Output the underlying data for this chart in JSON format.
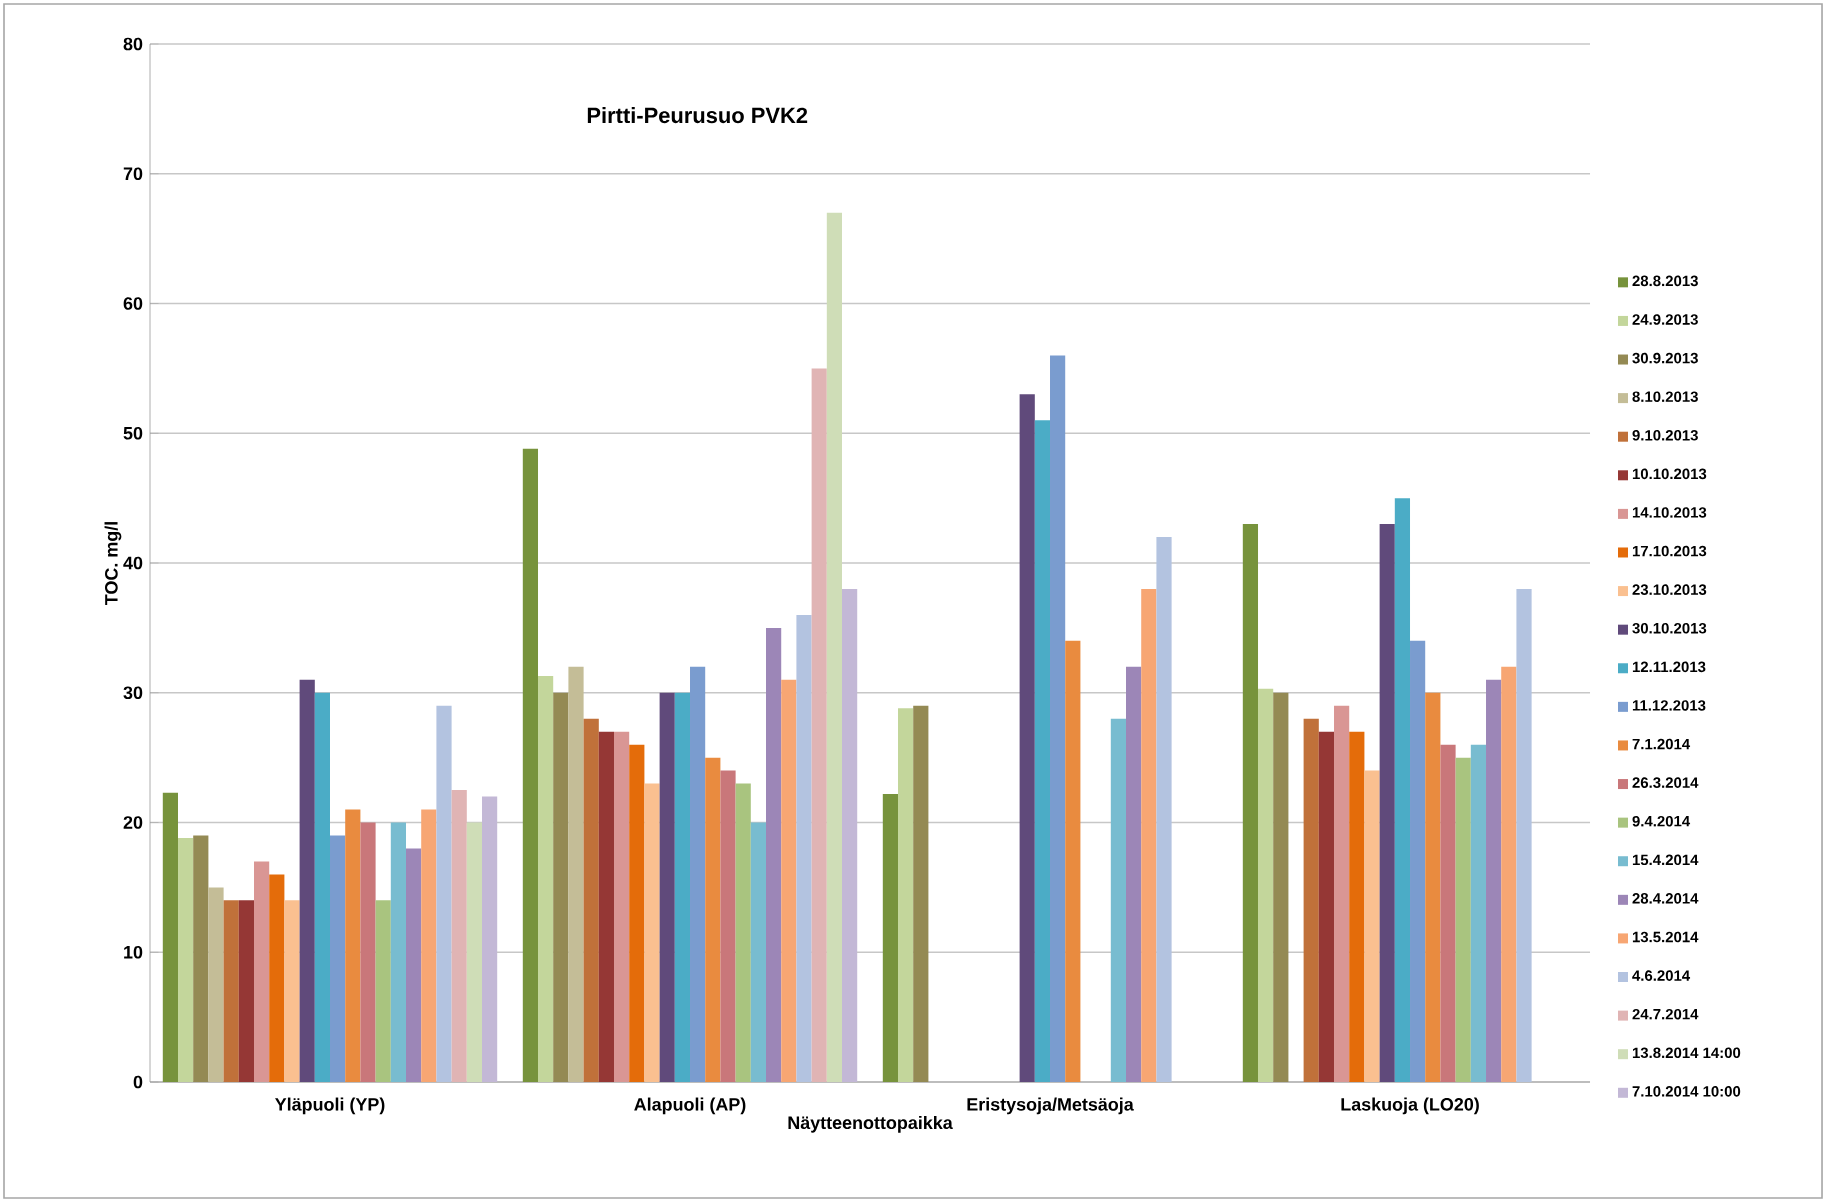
{
  "chart_data": {
    "type": "bar",
    "title": "Pirtti-Peurusuo PVK2",
    "xlabel": "Näytteenottopaikka",
    "ylabel": "TOC. mg/l",
    "categories": [
      "Yläpuoli (YP)",
      "Alapuoli (AP)",
      "Eristysoja/Metsäoja",
      "Laskuoja (LO20)"
    ],
    "ylim": [
      0,
      80
    ],
    "yticks": [
      0,
      10,
      20,
      30,
      40,
      50,
      60,
      70,
      80
    ],
    "grid": "y",
    "legend": "right",
    "series": [
      {
        "name": "28.8.2013",
        "color": "#77933c",
        "values": [
          22.3,
          48.8,
          22.2,
          43
        ]
      },
      {
        "name": "24.9.2013",
        "color": "#c3d69b",
        "values": [
          18.8,
          31.3,
          28.8,
          30.3
        ]
      },
      {
        "name": "30.9.2013",
        "color": "#948a54",
        "values": [
          19,
          30,
          29,
          30
        ]
      },
      {
        "name": "8.10.2013",
        "color": "#c4bd97",
        "values": [
          15,
          32,
          null,
          null
        ]
      },
      {
        "name": "9.10.2013",
        "color": "#c0713a",
        "values": [
          14,
          28,
          null,
          28
        ]
      },
      {
        "name": "10.10.2013",
        "color": "#953735",
        "values": [
          14,
          27,
          null,
          27
        ]
      },
      {
        "name": "14.10.2013",
        "color": "#d99694",
        "values": [
          17,
          27,
          null,
          29
        ]
      },
      {
        "name": "17.10.2013",
        "color": "#e46c0a",
        "values": [
          16,
          26,
          null,
          27
        ]
      },
      {
        "name": "23.10.2013",
        "color": "#fac090",
        "values": [
          14,
          23,
          null,
          24
        ]
      },
      {
        "name": "30.10.2013",
        "color": "#604a7b",
        "values": [
          31,
          30,
          53,
          43
        ]
      },
      {
        "name": "12.11.2013",
        "color": "#4bacc6",
        "values": [
          30,
          30,
          51,
          45
        ]
      },
      {
        "name": "11.12.2013",
        "color": "#7a9ccf",
        "values": [
          19,
          32,
          56,
          34
        ]
      },
      {
        "name": "7.1.2014",
        "color": "#e98b3f",
        "values": [
          21,
          25,
          34,
          30
        ]
      },
      {
        "name": "26.3.2014",
        "color": "#c9777a",
        "values": [
          20,
          24,
          null,
          26
        ]
      },
      {
        "name": "9.4.2014",
        "color": "#a9c47f",
        "values": [
          14,
          23,
          null,
          25
        ]
      },
      {
        "name": "15.4.2014",
        "color": "#78bcd0",
        "values": [
          20,
          20,
          28,
          26
        ]
      },
      {
        "name": "28.4.2014",
        "color": "#9c86b7",
        "values": [
          18,
          35,
          32,
          31
        ]
      },
      {
        "name": "13.5.2014",
        "color": "#f7a673",
        "values": [
          21,
          31,
          38,
          32
        ]
      },
      {
        "name": "4.6.2014",
        "color": "#b3c3e0",
        "values": [
          29,
          36,
          42,
          38
        ]
      },
      {
        "name": "24.7.2014",
        "color": "#e0b4b4",
        "values": [
          22.5,
          55,
          null,
          null
        ]
      },
      {
        "name": "13.8.2014 14:00",
        "color": "#cfddb7",
        "values": [
          20,
          67,
          null,
          null
        ]
      },
      {
        "name": "7.10.2014 10:00",
        "color": "#c3b8d6",
        "values": [
          22,
          38,
          null,
          null
        ]
      }
    ]
  }
}
